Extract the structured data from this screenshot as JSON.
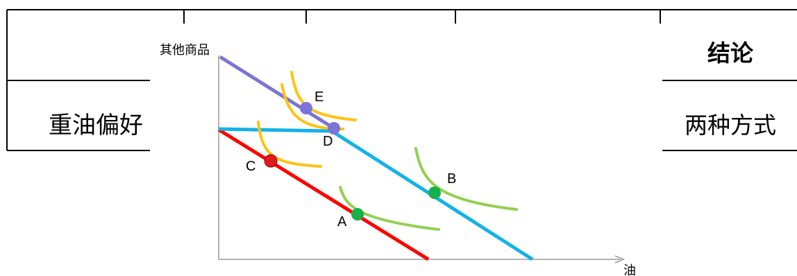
{
  "table": {
    "conclusion_header": "结论",
    "row_label": "重油偏好",
    "conclusion_value": "两种方式"
  },
  "chart_data": {
    "type": "diagram",
    "y_axis_label": "其他商品",
    "x_axis_label": "油",
    "points": [
      {
        "label": "A",
        "color": "#17b04a"
      },
      {
        "label": "B",
        "color": "#17b04a"
      },
      {
        "label": "C",
        "color": "#e01b1b"
      },
      {
        "label": "D",
        "color": "#7b74d6"
      },
      {
        "label": "E",
        "color": "#7b74d6"
      }
    ],
    "lines": [
      {
        "color": "#ff0000"
      },
      {
        "color": "#12b2e8"
      },
      {
        "color": "#7b74d6"
      }
    ],
    "curve_colors": {
      "yellow": "#ffc20e",
      "green": "#92d050"
    }
  }
}
